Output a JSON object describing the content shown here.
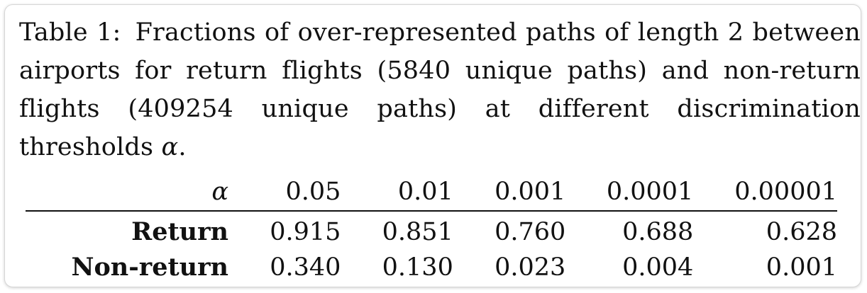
{
  "caption": {
    "label": "Table 1:",
    "text": "Fractions of over-represented paths of length 2 between airports for return flights (5840 unique paths) and non-return flights (409254 unique paths) at different discrimination thresholds",
    "symbol": "α",
    "end": "."
  },
  "table": {
    "header_symbol": "α",
    "thresholds": [
      "0.05",
      "0.01",
      "0.001",
      "0.0001",
      "0.00001"
    ],
    "rows": [
      {
        "label": "Return",
        "values": [
          "0.915",
          "0.851",
          "0.760",
          "0.688",
          "0.628"
        ]
      },
      {
        "label": "Non-return",
        "values": [
          "0.340",
          "0.130",
          "0.023",
          "0.004",
          "0.001"
        ]
      }
    ]
  }
}
